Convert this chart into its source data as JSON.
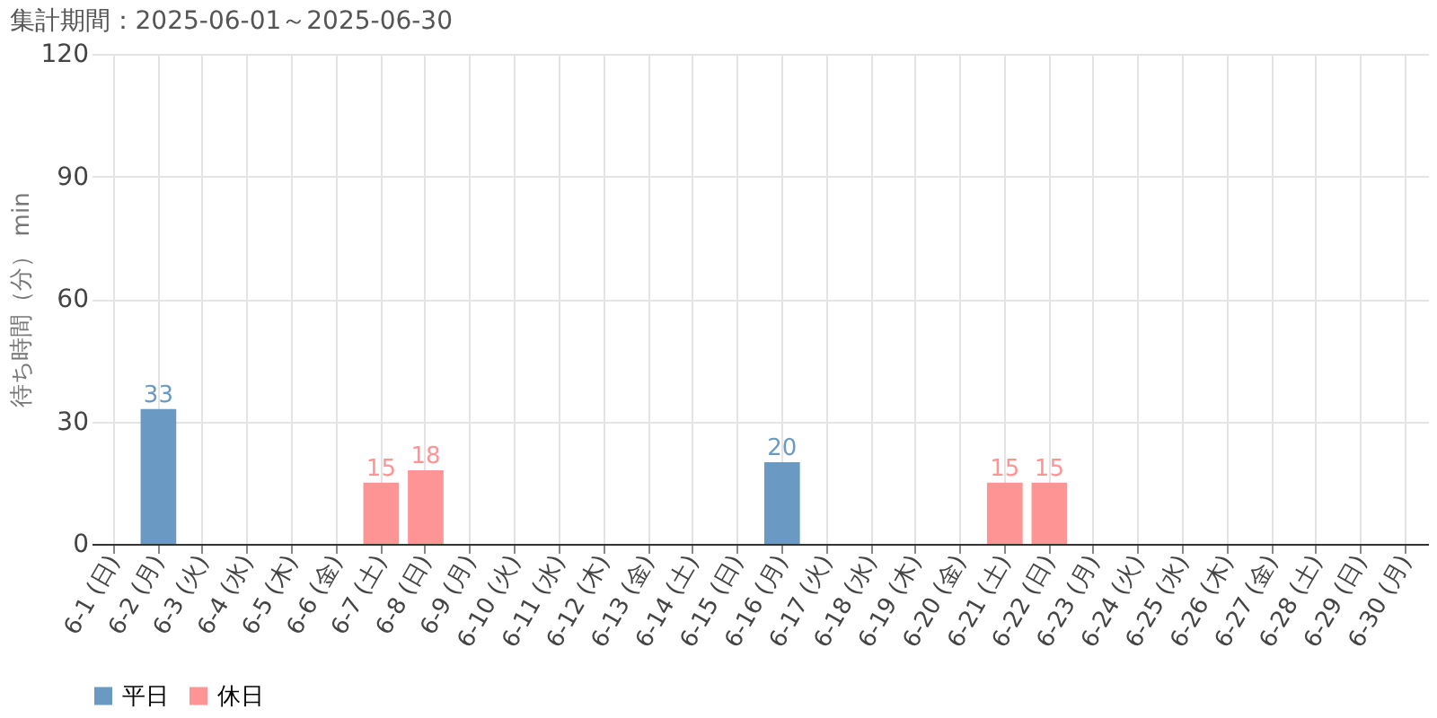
{
  "chart_data": {
    "type": "bar",
    "title": "集計期間：2025-06-01～2025-06-30",
    "ylabel": "待ち時間（分） min",
    "categories": [
      "6-1 (日)",
      "6-2 (月)",
      "6-3 (火)",
      "6-4 (水)",
      "6-5 (木)",
      "6-6 (金)",
      "6-7 (土)",
      "6-8 (日)",
      "6-9 (月)",
      "6-10 (火)",
      "6-11 (水)",
      "6-12 (木)",
      "6-13 (金)",
      "6-14 (土)",
      "6-15 (日)",
      "6-16 (月)",
      "6-17 (火)",
      "6-18 (水)",
      "6-19 (木)",
      "6-20 (金)",
      "6-21 (土)",
      "6-22 (日)",
      "6-23 (月)",
      "6-24 (火)",
      "6-25 (水)",
      "6-26 (木)",
      "6-27 (金)",
      "6-28 (土)",
      "6-29 (日)",
      "6-30 (月)"
    ],
    "series": [
      {
        "name": "平日",
        "color": "#6a9ac4",
        "values": [
          null,
          33,
          null,
          null,
          null,
          null,
          null,
          null,
          null,
          null,
          null,
          null,
          null,
          null,
          null,
          20,
          null,
          null,
          null,
          null,
          null,
          null,
          null,
          null,
          null,
          null,
          null,
          null,
          null,
          null
        ]
      },
      {
        "name": "休日",
        "color": "#ff9494",
        "values": [
          null,
          null,
          null,
          null,
          null,
          null,
          15,
          18,
          null,
          null,
          null,
          null,
          null,
          null,
          null,
          null,
          null,
          null,
          null,
          null,
          15,
          15,
          null,
          null,
          null,
          null,
          null,
          null,
          null,
          null
        ]
      }
    ],
    "ylim": [
      0,
      120
    ],
    "yticks": [
      0,
      30,
      60,
      90,
      120
    ],
    "grid": true,
    "legend": "bottom left",
    "data_labels": true
  }
}
